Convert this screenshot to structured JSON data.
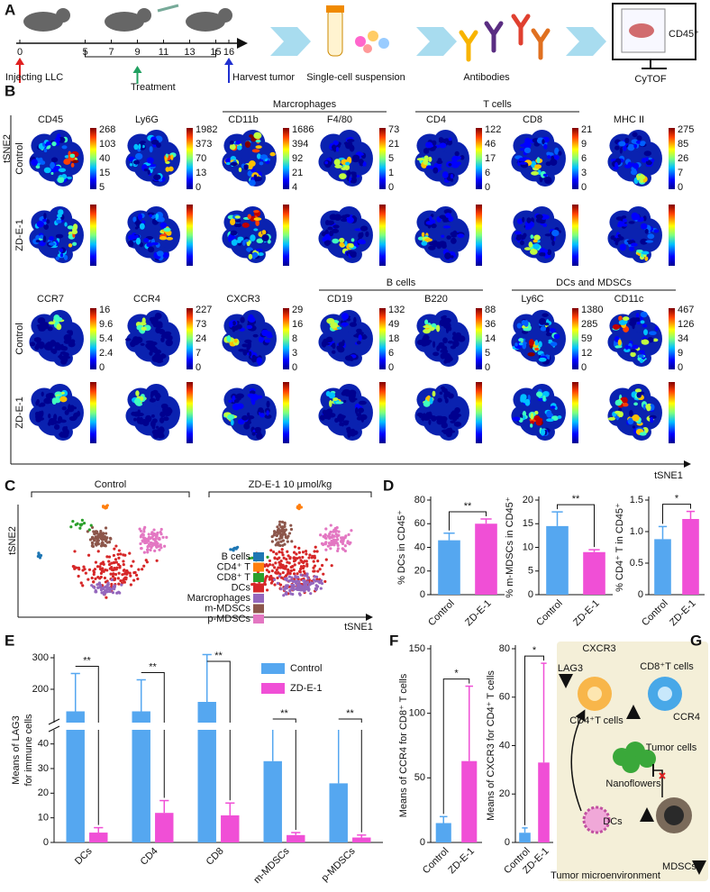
{
  "panel_labels": [
    "A",
    "B",
    "C",
    "D",
    "E",
    "F",
    "G"
  ],
  "panel_a": {
    "timeline": [
      0,
      5,
      7,
      9,
      11,
      13,
      15,
      16
    ],
    "events": [
      "Injecting LLC",
      "Treatment",
      "Harvest tumor"
    ],
    "steps": [
      "Single-cell suspension",
      "Antibodies",
      "CyTOF"
    ],
    "cytof_marker": "CD45⁺"
  },
  "panel_b": {
    "y_axis": "tSNE2",
    "x_axis": "tSNE1",
    "blocks": [
      {
        "groups": [
          "Marcrophages",
          "T cells"
        ],
        "conditions": [
          "Control",
          "ZD-E-1"
        ],
        "markers": [
          {
            "name": "CD45",
            "scale": [
              268,
              103,
              40,
              15,
              5
            ]
          },
          {
            "name": "Ly6G",
            "scale": [
              1982,
              373,
              70,
              13,
              0
            ]
          },
          {
            "name": "CD11b",
            "scale": [
              1686,
              394,
              92,
              21,
              4
            ]
          },
          {
            "name": "F4/80",
            "scale": [
              73,
              21,
              5,
              1,
              0
            ]
          },
          {
            "name": "CD4",
            "scale": [
              122,
              46,
              17,
              6,
              0
            ]
          },
          {
            "name": "CD8",
            "scale": [
              21,
              9,
              6,
              3,
              0
            ]
          },
          {
            "name": "MHC II",
            "scale": [
              275,
              85,
              26,
              7,
              0
            ]
          }
        ]
      },
      {
        "groups": [
          "B cells",
          "DCs and MDSCs"
        ],
        "conditions": [
          "Control",
          "ZD-E-1"
        ],
        "markers": [
          {
            "name": "CCR7",
            "scale": [
              16,
              9.6,
              5.4,
              2.4,
              0
            ]
          },
          {
            "name": "CCR4",
            "scale": [
              227,
              73,
              24,
              7,
              0
            ]
          },
          {
            "name": "CXCR3",
            "scale": [
              29,
              16,
              8,
              3,
              0
            ]
          },
          {
            "name": "CD19",
            "scale": [
              132,
              49,
              18,
              6,
              0
            ]
          },
          {
            "name": "B220",
            "scale": [
              88,
              36,
              14,
              5,
              0
            ]
          },
          {
            "name": "Ly6C",
            "scale": [
              1380,
              285,
              59,
              12,
              0
            ]
          },
          {
            "name": "CD11c",
            "scale": [
              467,
              126,
              34,
              9,
              0
            ]
          }
        ]
      }
    ]
  },
  "panel_c": {
    "conditions": [
      "Control",
      "ZD-E-1 10 μmol/kg"
    ],
    "y_axis": "tSNE2",
    "x_axis": "tSNE1",
    "legend": [
      {
        "name": "B cells",
        "color": "#1f77b4"
      },
      {
        "name": "CD4⁺ T",
        "color": "#ff7f0e"
      },
      {
        "name": "CD8⁺ T",
        "color": "#2ca02c"
      },
      {
        "name": "DCs",
        "color": "#d62728"
      },
      {
        "name": "Marcrophages",
        "color": "#9467bd"
      },
      {
        "name": "m-MDSCs",
        "color": "#8c564b"
      },
      {
        "name": "p-MDSCs",
        "color": "#e377c2"
      }
    ]
  },
  "chart_data": [
    {
      "type": "bar",
      "y_label": "% DCs in CD45⁺",
      "categories": [
        "Control",
        "ZD-E-1"
      ],
      "values": [
        46,
        60
      ],
      "errors": [
        6,
        4
      ],
      "colors": [
        "#55a7f0",
        "#f04fd6"
      ],
      "ylim": [
        0,
        80
      ],
      "yticks": [
        0,
        20,
        40,
        60,
        80
      ],
      "significance": "**"
    },
    {
      "type": "bar",
      "y_label": "% m-MDSCs in CD45⁺",
      "categories": [
        "Control",
        "ZD-E-1"
      ],
      "values": [
        14.5,
        9
      ],
      "errors": [
        3,
        0.5
      ],
      "colors": [
        "#55a7f0",
        "#f04fd6"
      ],
      "ylim": [
        0,
        20
      ],
      "yticks": [
        0,
        5,
        10,
        15,
        20
      ],
      "significance": "**"
    },
    {
      "type": "bar",
      "y_label": "% CD4⁺ T in CD45⁺",
      "categories": [
        "Control",
        "ZD-E-1"
      ],
      "values": [
        0.88,
        1.2
      ],
      "errors": [
        0.2,
        0.12
      ],
      "colors": [
        "#55a7f0",
        "#f04fd6"
      ],
      "ylim": [
        0,
        1.5
      ],
      "yticks": [
        0,
        0.5,
        {
          "value": 1,
          "label": "1.0"
        },
        1.5
      ],
      "significance": "*"
    },
    {
      "type": "grouped_bar",
      "y_label": [
        "Means of LAG3",
        "for immune cells"
      ],
      "categories": [
        "DCs",
        "CD4",
        "CD8",
        "m-MDSCs",
        "p-MDSCs"
      ],
      "series": [
        {
          "name": "Control",
          "color": "#55a7f0",
          "values": [
            130,
            130,
            160,
            33,
            24
          ],
          "errors": [
            120,
            100,
            150,
            30,
            30
          ]
        },
        {
          "name": "ZD-E-1",
          "color": "#f04fd6",
          "values": [
            4,
            12,
            11,
            3,
            2
          ],
          "errors": [
            2,
            5,
            5,
            1,
            1
          ]
        }
      ],
      "ylim": [
        0,
        300
      ],
      "yticks": [
        0,
        10,
        20,
        30,
        40,
        200,
        300
      ],
      "broken_axis": true,
      "significance": [
        "**",
        "**",
        "**",
        "**",
        "**"
      ]
    },
    {
      "type": "bar",
      "y_label": "Means of CCR4 for CD8⁺ T cells",
      "categories": [
        "Control",
        "ZD-E-1"
      ],
      "values": [
        15,
        63
      ],
      "errors": [
        5,
        58
      ],
      "colors": [
        "#55a7f0",
        "#f04fd6"
      ],
      "ylim": [
        0,
        150
      ],
      "yticks": [
        0,
        50,
        100,
        150
      ],
      "significance": "*"
    },
    {
      "type": "bar",
      "y_label": "Means of CXCR3 for CD4⁺ T cells",
      "categories": [
        "Control",
        "ZD-E-1"
      ],
      "values": [
        4,
        33
      ],
      "errors": [
        2,
        41
      ],
      "colors": [
        "#55a7f0",
        "#f04fd6"
      ],
      "ylim": [
        0,
        80
      ],
      "yticks": [
        0,
        20,
        40,
        60,
        80
      ],
      "significance": "*"
    }
  ],
  "panel_g": {
    "labels": [
      "CXCR3",
      "CD8⁺T cells",
      "LAG3",
      "CCR4",
      "CD4⁺T cells",
      "Tumor cells",
      "Nanoflowers",
      "DCs",
      "MDSCs",
      "Tumor microenvironment"
    ]
  }
}
